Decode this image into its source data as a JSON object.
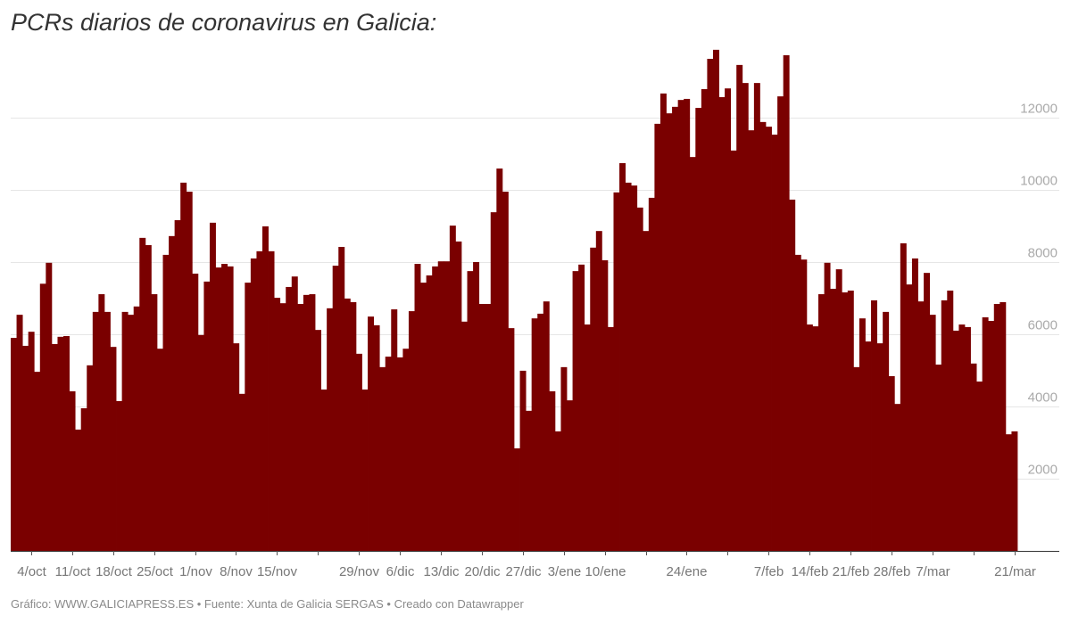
{
  "title": "PCRs diarios de coronavirus en Galicia:",
  "footer": "Gráfico: WWW.GALICIAPRESS.ES • Fuente: Xunta de Galicia SERGAS • Creado con Datawrapper",
  "colors": {
    "bar": "#7a0000",
    "grid": "#e6e6e6",
    "axis": "#333333"
  },
  "chart_data": {
    "type": "bar",
    "title": "PCRs diarios de coronavirus en Galicia:",
    "xlabel": "",
    "ylabel": "",
    "ylim": [
      0,
      14000
    ],
    "grid": true,
    "y_ticks": [
      2000,
      4000,
      6000,
      8000,
      10000,
      12000
    ],
    "months": [
      {
        "name": "oct",
        "values": [
          5900,
          6540,
          5680,
          6070,
          4960,
          7400,
          7980,
          5730,
          5930,
          5950,
          4420,
          3360,
          3950,
          5140,
          6620,
          7110,
          6620,
          5650,
          4150,
          6620,
          6540,
          6770,
          8670,
          8470,
          7110,
          5600,
          8200,
          8720,
          9160,
          10200,
          9950
        ]
      },
      {
        "name": "nov",
        "values": [
          7680,
          5980,
          7460,
          9090,
          7850,
          7950,
          7880,
          5750,
          4350,
          7430,
          8100,
          8300,
          8990,
          8300,
          7010,
          6860,
          7310,
          7600,
          6840,
          7090,
          7110,
          6120,
          4470,
          6720,
          7900,
          8420,
          6990,
          6890,
          5460,
          4470
        ]
      },
      {
        "name": "dic",
        "values": [
          6490,
          6250,
          5090,
          5380,
          6690,
          5360,
          5600,
          6640,
          7950,
          7430,
          7630,
          7880,
          8020,
          8020,
          9010,
          8570,
          6350,
          7750,
          8000,
          6840,
          6840,
          9380,
          10590,
          9950,
          6170,
          2840,
          4990,
          3880,
          6440,
          6570,
          6910
        ]
      },
      {
        "name": "ene",
        "values": [
          4420,
          3310,
          5090,
          4170,
          7750,
          7930,
          6270,
          8400,
          8860,
          8050,
          6200,
          9930,
          10740,
          10200,
          10120,
          9510,
          8860,
          9780,
          11830,
          12670,
          12120,
          12300,
          12490,
          12520,
          10910,
          12270,
          12790,
          13630,
          13880,
          12570,
          12810
        ]
      },
      {
        "name": "feb",
        "values": [
          11090,
          13460,
          12960,
          11650,
          12960,
          11880,
          11750,
          11530,
          12590,
          13730,
          9730,
          8200,
          8070,
          6270,
          6220,
          7110,
          7980,
          7260,
          7800,
          7160,
          7210,
          5090,
          6440,
          5800,
          6940,
          5750,
          6620,
          4840
        ]
      },
      {
        "name": "mar",
        "values": [
          4070,
          8520,
          7380,
          8100,
          6910,
          7700,
          6540,
          5160,
          6940,
          7210,
          6100,
          6270,
          6200,
          5190,
          4690,
          6470,
          6370,
          6840,
          6890,
          3230,
          3310
        ]
      }
    ],
    "x_ticks": [
      {
        "date": "4/oct",
        "label": "4/oct"
      },
      {
        "date": "11/oct",
        "label": "11/oct"
      },
      {
        "date": "18/oct",
        "label": "18/oct"
      },
      {
        "date": "25/oct",
        "label": "25/oct"
      },
      {
        "date": "1/nov",
        "label": "1/nov"
      },
      {
        "date": "8/nov",
        "label": "8/nov"
      },
      {
        "date": "15/nov",
        "label": "15/nov"
      },
      {
        "date": "22/nov",
        "label": ""
      },
      {
        "date": "29/nov",
        "label": "29/nov"
      },
      {
        "date": "6/dic",
        "label": "6/dic"
      },
      {
        "date": "13/dic",
        "label": "13/dic"
      },
      {
        "date": "20/dic",
        "label": "20/dic"
      },
      {
        "date": "27/dic",
        "label": "27/dic"
      },
      {
        "date": "3/ene",
        "label": "3/ene"
      },
      {
        "date": "10/ene",
        "label": "10/ene"
      },
      {
        "date": "17/ene",
        "label": ""
      },
      {
        "date": "24/ene",
        "label": "24/ene"
      },
      {
        "date": "31/ene",
        "label": ""
      },
      {
        "date": "7/feb",
        "label": "7/feb"
      },
      {
        "date": "14/feb",
        "label": "14/feb"
      },
      {
        "date": "21/feb",
        "label": "21/feb"
      },
      {
        "date": "28/feb",
        "label": "28/feb"
      },
      {
        "date": "7/mar",
        "label": "7/mar"
      },
      {
        "date": "14/mar",
        "label": ""
      },
      {
        "date": "21/mar",
        "label": "21/mar"
      }
    ]
  }
}
